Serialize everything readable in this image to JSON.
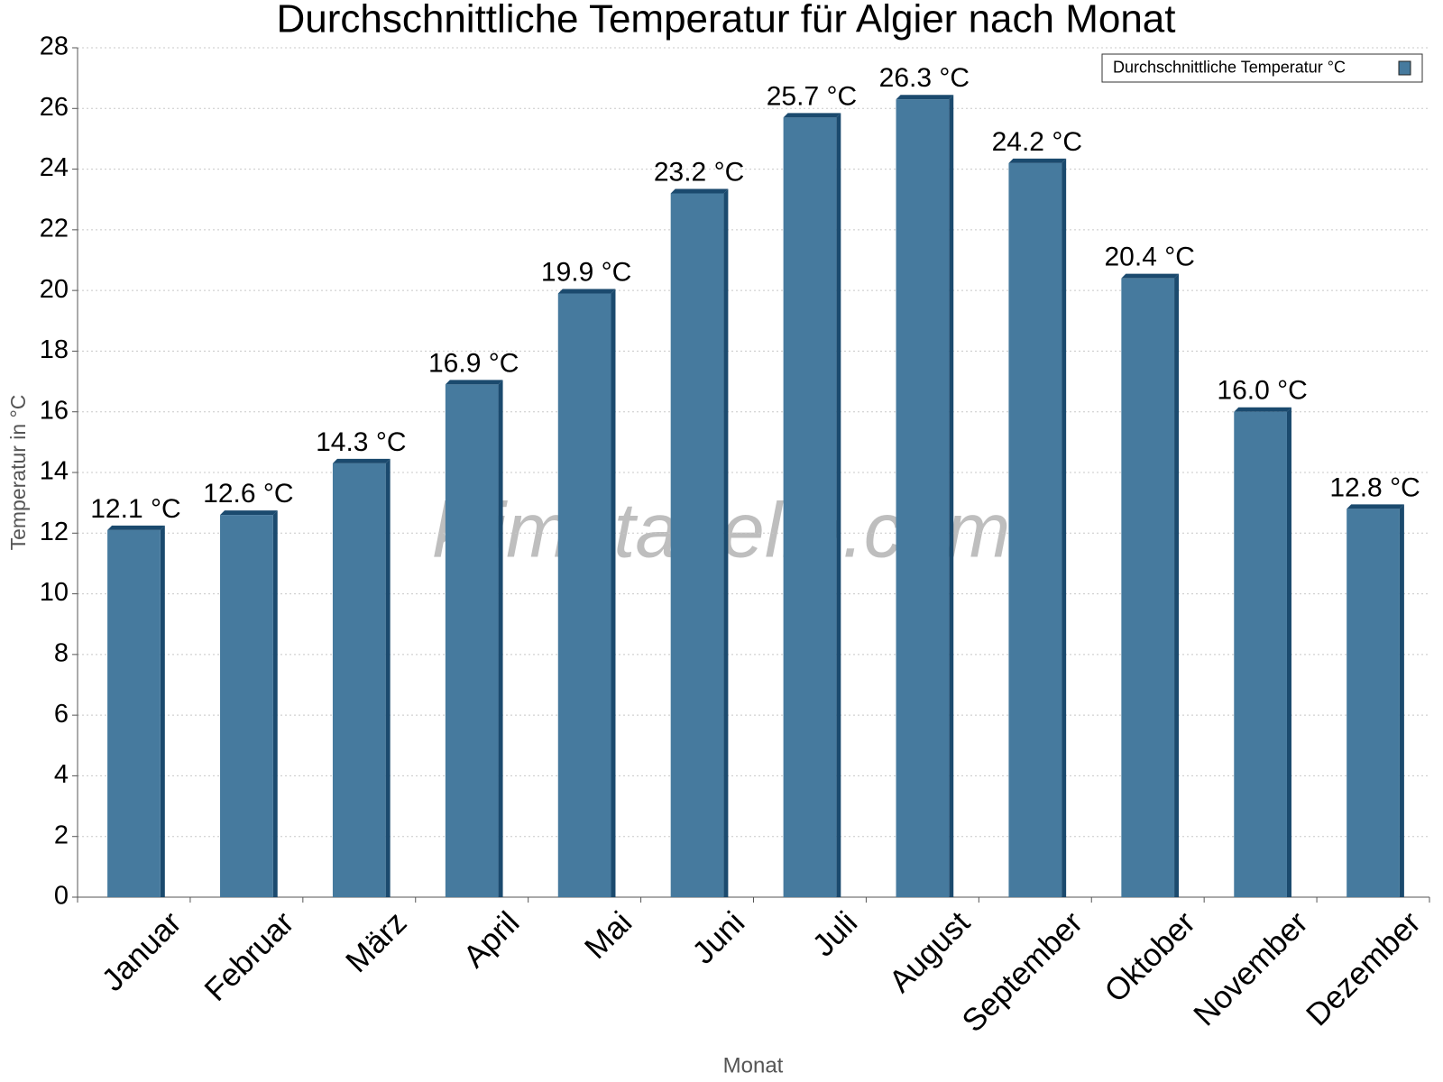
{
  "chart_data": {
    "type": "bar",
    "title": "Durchschnittliche Temperatur für Algier nach Monat",
    "x_label": "Monat",
    "y_label": "Temperatur in °C",
    "watermark": "klimatabelle.com",
    "categories": [
      "Januar",
      "Februar",
      "März",
      "April",
      "Mai",
      "Juni",
      "Juli",
      "August",
      "September",
      "Oktober",
      "November",
      "Dezember"
    ],
    "series": [
      {
        "name": "Durchschnittliche Temperatur °C",
        "color": "#467a9e",
        "side_color": "#1b4a6e",
        "values": [
          12.1,
          12.6,
          14.3,
          16.9,
          19.9,
          23.2,
          25.7,
          26.3,
          24.2,
          20.4,
          16.0,
          12.8
        ],
        "value_labels": [
          "12.1 °C",
          "12.6 °C",
          "14.3 °C",
          "16.9 °C",
          "19.9 °C",
          "23.2 °C",
          "25.7 °C",
          "26.3 °C",
          "24.2 °C",
          "20.4 °C",
          "16.0 °C",
          "12.8 °C"
        ]
      }
    ],
    "ylim": [
      0,
      28
    ],
    "yticks": [
      0,
      2,
      4,
      6,
      8,
      10,
      12,
      14,
      16,
      18,
      20,
      22,
      24,
      26,
      28
    ],
    "grid": true,
    "legend": "top-right"
  }
}
